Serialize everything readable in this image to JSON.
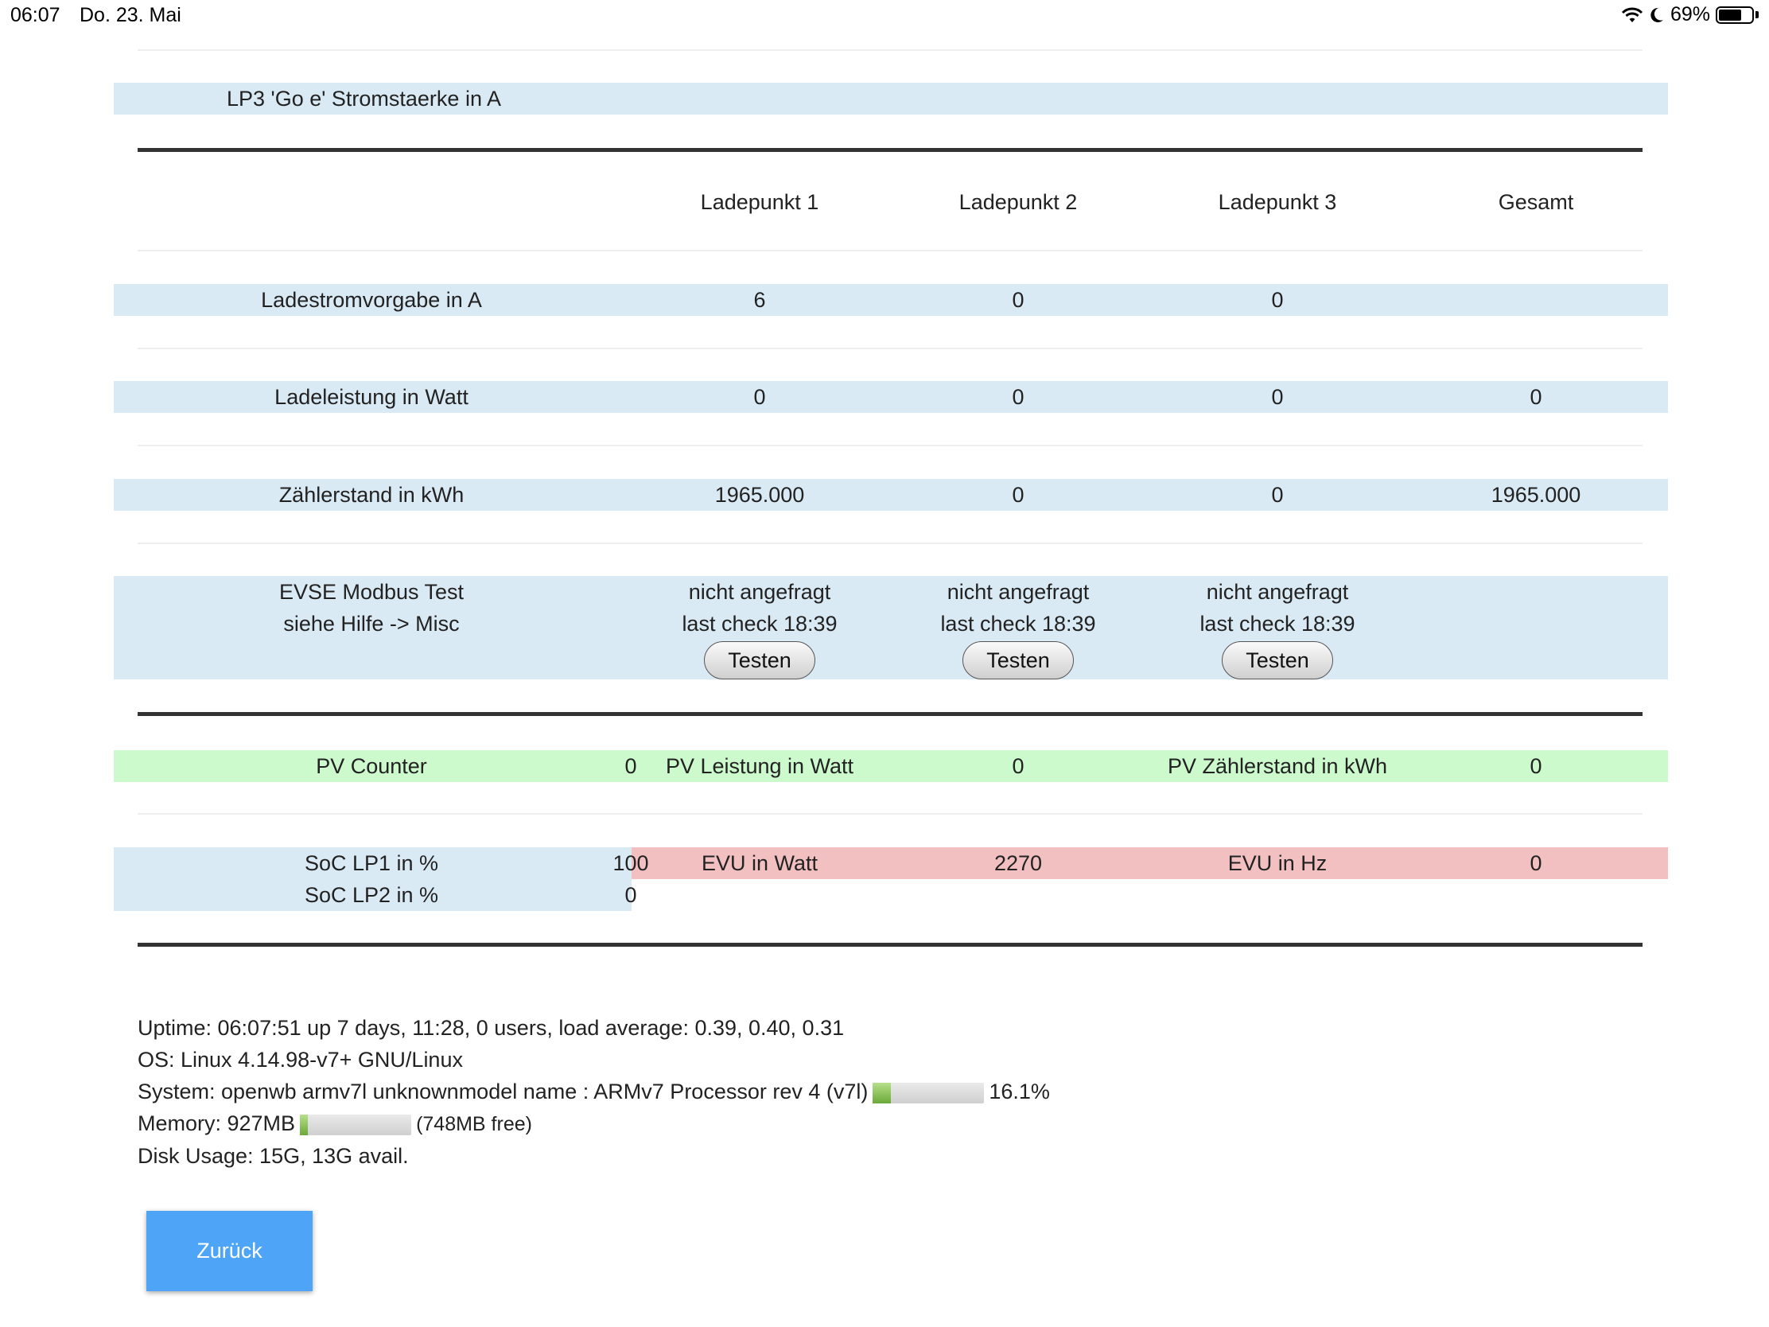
{
  "status_bar": {
    "time": "06:07",
    "date": "Do. 23. Mai",
    "battery": "69%",
    "battery_level": 0.69
  },
  "lp3_label": "LP3 'Go e' Stromstaerke in A",
  "table": {
    "headers": [
      "Ladepunkt 1",
      "Ladepunkt 2",
      "Ladepunkt 3",
      "Gesamt"
    ],
    "ladestrom": {
      "label": "Ladestromvorgabe in A",
      "values": [
        "6",
        "0",
        "0",
        ""
      ]
    },
    "ladeleistung": {
      "label": "Ladeleistung in Watt",
      "values": [
        "0",
        "0",
        "0",
        "0"
      ]
    },
    "zaehlerstand": {
      "label": "Zählerstand in kWh",
      "values": [
        "1965.000",
        "0",
        "0",
        "1965.000"
      ]
    },
    "evse": {
      "label_line1": "EVSE Modbus Test",
      "label_line2": "siehe Hilfe -> Misc",
      "status": "nicht angefragt",
      "last_check": "last check 18:39",
      "button_label": "Testen"
    }
  },
  "pv": {
    "counter_label": "PV Counter",
    "counter_value": "0",
    "leistung_label": "PV Leistung in Watt",
    "leistung_value": "0",
    "zaehler_label": "PV Zählerstand in kWh",
    "zaehler_value": "0"
  },
  "soc": {
    "lp1_label": "SoC LP1 in %",
    "lp1_value": "100",
    "lp2_label": "SoC LP2 in %",
    "lp2_value": "0"
  },
  "evu": {
    "watt_label": "EVU in Watt",
    "watt_value": "2270",
    "hz_label": "EVU in Hz",
    "hz_value": "0"
  },
  "system_info": {
    "uptime": "Uptime: 06:07:51 up 7 days, 11:28, 0 users, load average: 0.39, 0.40, 0.31",
    "os": "OS: Linux 4.14.98-v7+ GNU/Linux",
    "system": "System: openwb armv7l unknownmodel name : ARMv7 Processor rev 4 (v7l)",
    "cpu_percent": "16.1%",
    "cpu_level": 0.161,
    "memory": "Memory: 927MB",
    "memory_free": "(748MB free)",
    "memory_used_level": 0.07,
    "disk": "Disk Usage: 15G, 13G avail."
  },
  "back_button": "Zurück",
  "colors": {
    "band": "#daeaf5",
    "pv_band": "#ccfacc",
    "evu_band": "#f2c0c1",
    "button": "#4ea5f7"
  }
}
